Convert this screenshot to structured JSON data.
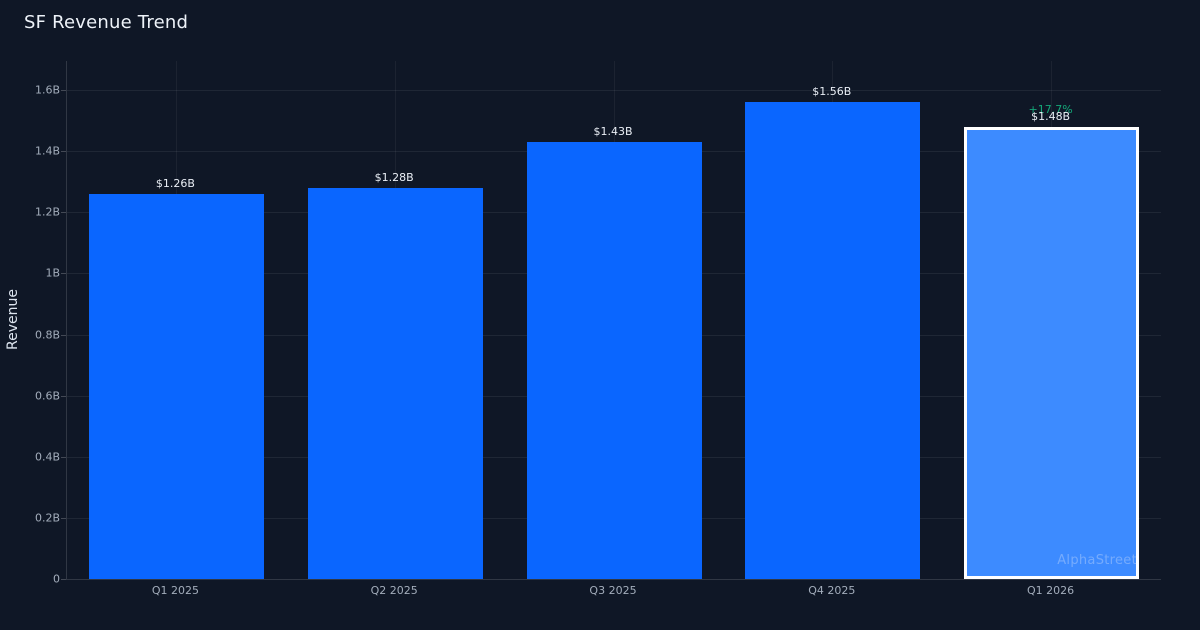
{
  "page": {
    "title": "SF Revenue Trend",
    "watermark": "AlphaStreet"
  },
  "chart_data": {
    "type": "bar",
    "title": "SF Revenue Trend",
    "xlabel": "",
    "ylabel": "Revenue",
    "categories": [
      "Q1 2025",
      "Q2 2025",
      "Q3 2025",
      "Q4 2025",
      "Q1 2026"
    ],
    "values": [
      1.26,
      1.28,
      1.43,
      1.56,
      1.48
    ],
    "value_labels": [
      "$1.26B",
      "$1.28B",
      "$1.43B",
      "$1.56B",
      "$1.48B"
    ],
    "highlight_index": 4,
    "delta_label": "+17.7%",
    "ylim": [
      0,
      1.6
    ],
    "y_ticks": [
      {
        "v": 0,
        "label": "0"
      },
      {
        "v": 0.2,
        "label": "0.2B"
      },
      {
        "v": 0.4,
        "label": "0.4B"
      },
      {
        "v": 0.6,
        "label": "0.6B"
      },
      {
        "v": 0.8,
        "label": "0.8B"
      },
      {
        "v": 1.0,
        "label": "1B"
      },
      {
        "v": 1.2,
        "label": "1.2B"
      },
      {
        "v": 1.4,
        "label": "1.4B"
      },
      {
        "v": 1.6,
        "label": "1.6B"
      }
    ],
    "grid": true,
    "legend": false,
    "colors": {
      "background": "#0f1726",
      "bar": "#0a66ff",
      "highlight_bar": "#3d8bff",
      "highlight_border": "#ffffff",
      "delta": "#14a879",
      "label_text": "#e9eef5",
      "tick_text": "#a3adbb"
    }
  }
}
